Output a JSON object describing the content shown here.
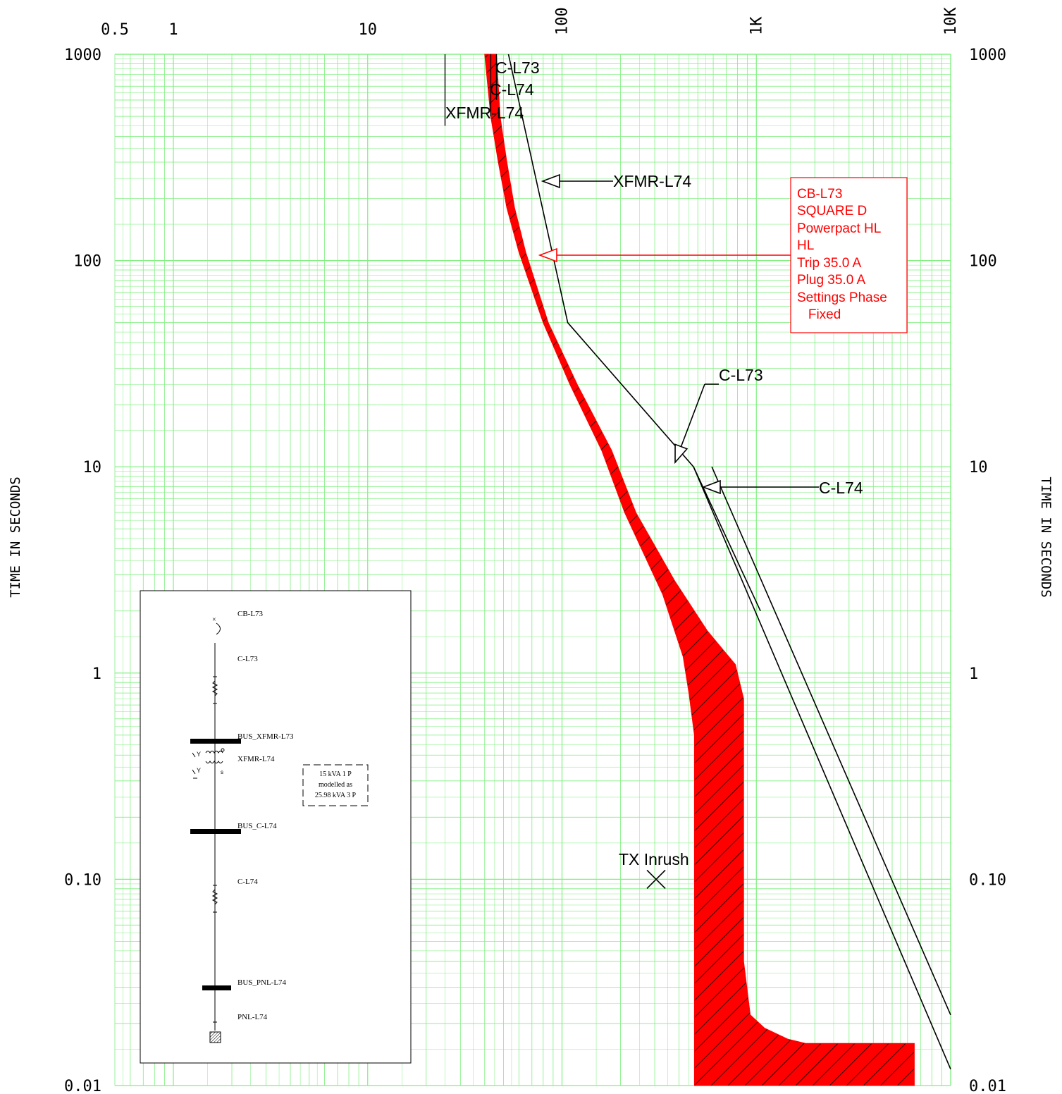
{
  "chart_data": {
    "type": "line",
    "scale": {
      "x": "log",
      "y": "log"
    },
    "xlim": [
      0.5,
      10000
    ],
    "ylim": [
      0.01,
      1000
    ],
    "x_ticks": [
      {
        "value": 0.5,
        "label": "0.5"
      },
      {
        "value": 1,
        "label": "1"
      },
      {
        "value": 10,
        "label": "10"
      },
      {
        "value": 100,
        "label": "100"
      },
      {
        "value": 1000,
        "label": "1K"
      },
      {
        "value": 10000,
        "label": "10K"
      }
    ],
    "y_ticks": [
      {
        "value": 1000,
        "label": "1000"
      },
      {
        "value": 100,
        "label": "100"
      },
      {
        "value": 10,
        "label": "10"
      },
      {
        "value": 1,
        "label": "1"
      },
      {
        "value": 0.1,
        "label": "0.10"
      },
      {
        "value": 0.01,
        "label": "0.01"
      }
    ],
    "ylabel": "TIME IN SECONDS",
    "grid": true,
    "grid_color": "#7fef7f",
    "band_color": "#ff0000",
    "line_color": "#000000",
    "breaker_band": {
      "name": "CB-L73",
      "left": [
        [
          40,
          1000
        ],
        [
          43,
          500
        ],
        [
          47,
          300
        ],
        [
          52,
          180
        ],
        [
          60,
          110
        ],
        [
          80,
          50
        ],
        [
          110,
          25
        ],
        [
          160,
          12
        ],
        [
          210,
          6
        ],
        [
          330,
          2.4
        ],
        [
          420,
          1.2
        ],
        [
          450,
          0.8
        ],
        [
          480,
          0.5
        ],
        [
          480,
          0.01
        ]
      ],
      "right": [
        [
          46,
          1000
        ],
        [
          48,
          500
        ],
        [
          52,
          300
        ],
        [
          57,
          180
        ],
        [
          65,
          110
        ],
        [
          85,
          50
        ],
        [
          120,
          25
        ],
        [
          180,
          12
        ],
        [
          240,
          6
        ],
        [
          380,
          2.8
        ],
        [
          560,
          1.6
        ],
        [
          780,
          1.1
        ],
        [
          860,
          0.75
        ],
        [
          860,
          0.04
        ],
        [
          930,
          0.022
        ],
        [
          1100,
          0.019
        ],
        [
          1450,
          0.0168
        ],
        [
          1800,
          0.016
        ],
        [
          6500,
          0.016
        ],
        [
          6500,
          0.01
        ]
      ]
    },
    "cable_curves": [
      {
        "name": "C-L73",
        "points": [
          [
            46,
            1000
          ],
          [
            46,
            600
          ]
        ]
      },
      {
        "name": "C-L74",
        "points": [
          [
            43,
            1000
          ],
          [
            43,
            500
          ]
        ]
      }
    ],
    "xfmr_curve": {
      "name": "XFMR-L74",
      "points": [
        [
          25,
          1000
        ],
        [
          25,
          450
        ]
      ]
    },
    "damage_lines": [
      {
        "name": "C-L73",
        "points": [
          [
            53,
            1000
          ],
          [
            107,
            50
          ],
          [
            475,
            10
          ],
          [
            1050,
            2
          ]
        ]
      },
      {
        "name": "C-L74",
        "points": [
          [
            590,
            10
          ],
          [
            10000,
            0.022
          ]
        ]
      },
      {
        "name": "C-L73-ext",
        "points": [
          [
            475,
            10
          ],
          [
            10000,
            0.012
          ]
        ]
      }
    ],
    "tx_inrush": {
      "label": "TX Inrush",
      "x": 305,
      "y": 0.1
    },
    "labels": {
      "c_l73_top": "C-L73",
      "c_l74_top": "C-L74",
      "xfmr_top": "XFMR-L74",
      "xfmr_arrow": "XFMR-L74",
      "c_l73_mid": "C-L73",
      "c_l74_mid": "C-L74"
    },
    "annotation": {
      "lines": [
        "CB-L73",
        "SQUARE D",
        "Powerpact HL",
        "HL",
        "Trip 35.0 A",
        "Plug 35.0 A",
        "Settings Phase",
        "   Fixed"
      ]
    }
  },
  "one_line": {
    "items": [
      {
        "key": "cb",
        "label": "CB-L73"
      },
      {
        "key": "cable1",
        "label": "C-L73"
      },
      {
        "key": "bus1",
        "label": "BUS_XFMR-L73"
      },
      {
        "key": "xfmr",
        "label": "XFMR-L74"
      },
      {
        "key": "bus2",
        "label": "BUS_C-L74"
      },
      {
        "key": "cable2",
        "label": "C-L74"
      },
      {
        "key": "bus3",
        "label": "BUS_PNL-L74"
      },
      {
        "key": "panel",
        "label": "PNL-L74"
      }
    ],
    "note_lines": [
      "15 kVA 1 P",
      "modelled as",
      "25.98 kVA 3 P"
    ],
    "xfmr_terminal": "s"
  }
}
